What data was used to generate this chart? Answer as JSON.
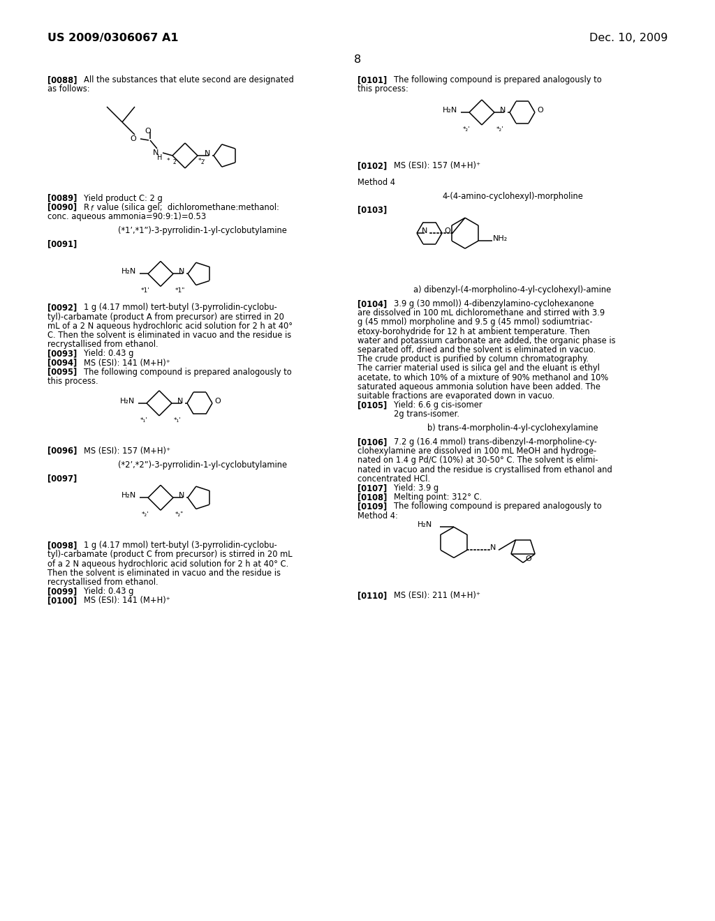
{
  "bg_color": "#ffffff",
  "header_left": "US 2009/0306067 A1",
  "header_right": "Dec. 10, 2009",
  "page_num": "8"
}
